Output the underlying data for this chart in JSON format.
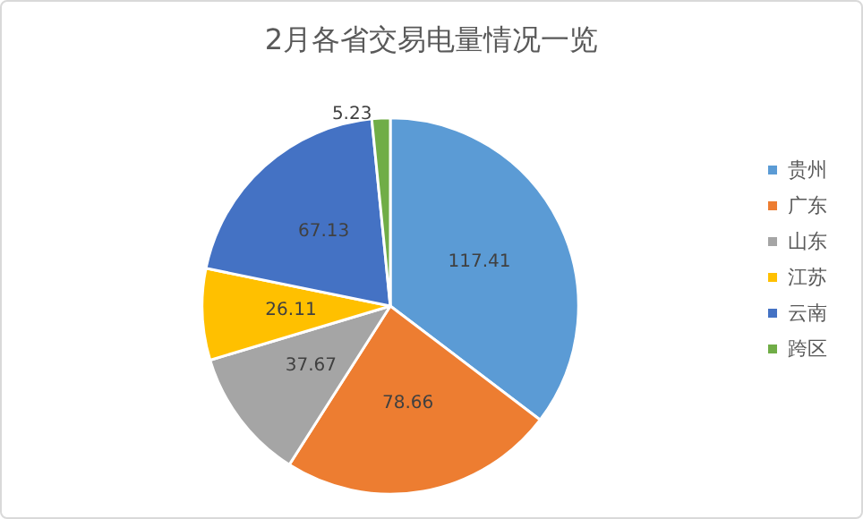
{
  "chart_data": {
    "type": "pie",
    "title": "2月各省交易电量情况一览",
    "categories": [
      "贵州",
      "广东",
      "山东",
      "江苏",
      "云南",
      "跨区"
    ],
    "values": [
      117.41,
      78.66,
      37.67,
      26.11,
      67.13,
      5.23
    ],
    "colors": [
      "#5b9bd5",
      "#ed7d31",
      "#a5a5a5",
      "#ffc000",
      "#4472c4",
      "#70ad47"
    ],
    "data_labels": true,
    "legend": "right"
  }
}
